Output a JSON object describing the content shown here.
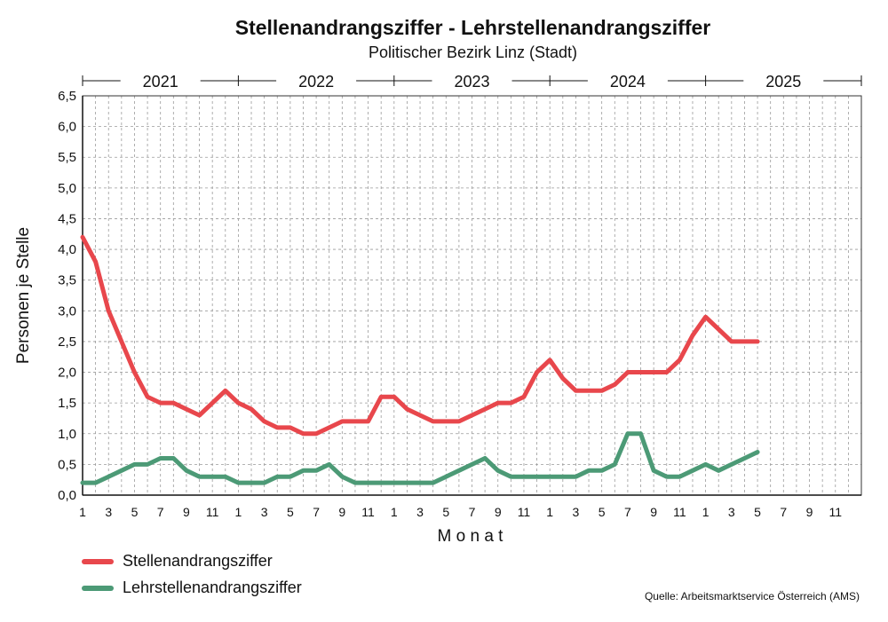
{
  "header": {
    "title": "Stellenandrangsziffer - Lehrstellenandrangsziffer",
    "subtitle": "Politischer Bezirk Linz (Stadt)"
  },
  "source": "Quelle: Arbeitsmarktservice Österreich (AMS)",
  "colors": {
    "series1": "#e8474c",
    "series2": "#4c9a76",
    "grid": "#9a9a9a"
  },
  "chart_data": {
    "type": "line",
    "title": "Stellenandrangsziffer - Lehrstellenandrangsziffer",
    "subtitle": "Politischer Bezirk Linz (Stadt)",
    "xlabel": "M o n a t",
    "ylabel": "Personen je Stelle",
    "ylim": [
      0,
      6.5
    ],
    "yticks": [
      "0,0",
      "0,5",
      "1,0",
      "1,5",
      "2,0",
      "2,5",
      "3,0",
      "3,5",
      "4,0",
      "4,5",
      "5,0",
      "5,5",
      "6,0",
      "6,5"
    ],
    "years": [
      "2021",
      "2022",
      "2023",
      "2024",
      "2025"
    ],
    "x_tick_labels": [
      "1",
      "3",
      "5",
      "7",
      "9",
      "11",
      "1",
      "3",
      "5",
      "7",
      "9",
      "11",
      "1",
      "3",
      "5",
      "7",
      "9",
      "11",
      "1",
      "3",
      "5",
      "7",
      "9",
      "11",
      "1",
      "3",
      "5",
      "7",
      "9",
      "11"
    ],
    "months_total": 60,
    "grid": true,
    "legend_position": "bottom-left",
    "series": [
      {
        "name": "Stellenandrangsziffer",
        "color": "#e8474c",
        "values": [
          4.2,
          3.8,
          3.0,
          2.5,
          2.0,
          1.6,
          1.5,
          1.5,
          1.4,
          1.3,
          1.5,
          1.7,
          1.5,
          1.4,
          1.2,
          1.1,
          1.1,
          1.0,
          1.0,
          1.1,
          1.2,
          1.2,
          1.2,
          1.6,
          1.6,
          1.4,
          1.3,
          1.2,
          1.2,
          1.2,
          1.3,
          1.4,
          1.5,
          1.5,
          1.6,
          2.0,
          2.2,
          1.9,
          1.7,
          1.7,
          1.7,
          1.8,
          2.0,
          2.0,
          2.0,
          2.0,
          2.2,
          2.6,
          2.9,
          2.7,
          2.5,
          2.5,
          2.5
        ]
      },
      {
        "name": "Lehrstellenandrangsziffer",
        "color": "#4c9a76",
        "values": [
          0.2,
          0.2,
          0.3,
          0.4,
          0.5,
          0.5,
          0.6,
          0.6,
          0.4,
          0.3,
          0.3,
          0.3,
          0.2,
          0.2,
          0.2,
          0.3,
          0.3,
          0.4,
          0.4,
          0.5,
          0.3,
          0.2,
          0.2,
          0.2,
          0.2,
          0.2,
          0.2,
          0.2,
          0.3,
          0.4,
          0.5,
          0.6,
          0.4,
          0.3,
          0.3,
          0.3,
          0.3,
          0.3,
          0.3,
          0.4,
          0.4,
          0.5,
          1.0,
          1.0,
          0.4,
          0.3,
          0.3,
          0.4,
          0.5,
          0.4,
          0.5,
          0.6,
          0.7
        ]
      }
    ]
  }
}
